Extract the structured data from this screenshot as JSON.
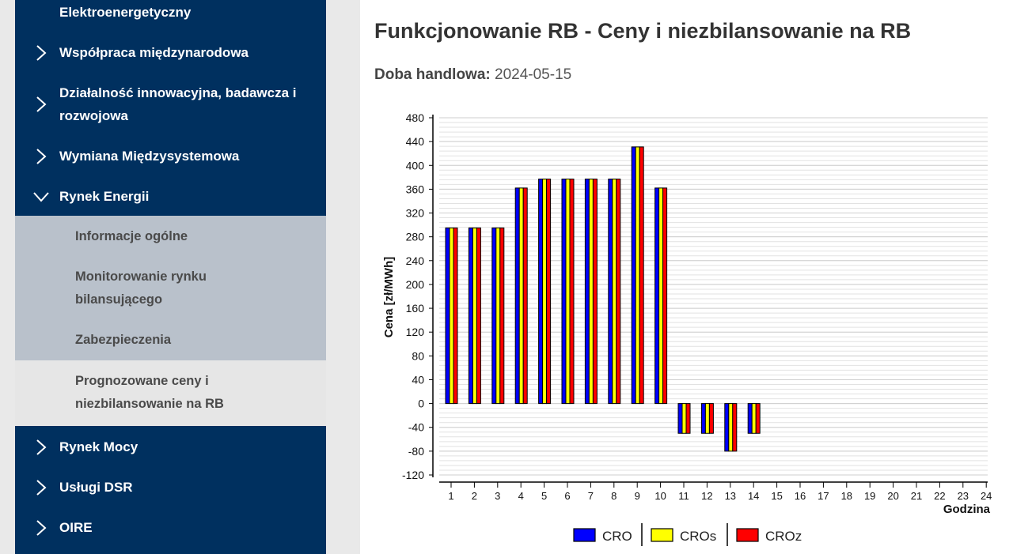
{
  "sidebar": {
    "items_top": [
      {
        "label": "Elektroenergetyczny",
        "chevron": "none"
      },
      {
        "label": "Współpraca międzynarodowa",
        "chevron": "right"
      },
      {
        "label": "Działalność innowacyjna, badawcza i rozwojowa",
        "chevron": "right"
      },
      {
        "label": "Wymiana Międzysystemowa",
        "chevron": "right"
      },
      {
        "label": "Rynek Energii",
        "chevron": "down"
      }
    ],
    "submenu": [
      {
        "label": "Informacje ogólne"
      },
      {
        "label": "Monitorowanie rynku bilansującego"
      },
      {
        "label": "Zabezpieczenia"
      }
    ],
    "submenu_active": {
      "label": "Prognozowane ceny i niezbilansowanie na RB"
    },
    "items_bottom": [
      {
        "label": "Rynek Mocy",
        "chevron": "right"
      },
      {
        "label": "Usługi DSR",
        "chevron": "right"
      },
      {
        "label": "OIRE",
        "chevron": "right"
      }
    ]
  },
  "main": {
    "title": "Funkcjonowanie RB - Ceny i niezbilansowanie na RB",
    "date_label": "Doba handlowa:",
    "date_value": "2024-05-15"
  },
  "chart_data": {
    "type": "bar",
    "title": "",
    "xlabel": "Godzina",
    "ylabel": "Cena [zł/MWh]",
    "ylim": [
      -120,
      480
    ],
    "yticks": [
      480,
      440,
      400,
      360,
      320,
      280,
      240,
      200,
      160,
      120,
      80,
      40,
      0,
      -40,
      -80,
      -120
    ],
    "categories": [
      "1",
      "2",
      "3",
      "4",
      "5",
      "6",
      "7",
      "8",
      "9",
      "10",
      "11",
      "12",
      "13",
      "14",
      "15",
      "16",
      "17",
      "18",
      "19",
      "20",
      "21",
      "22",
      "23",
      "24"
    ],
    "series": [
      {
        "name": "CRO",
        "color": "#0000ff",
        "values": [
          295,
          295,
          295,
          362,
          377,
          377,
          377,
          377,
          431,
          362,
          -50,
          -50,
          -80,
          -50,
          null,
          null,
          null,
          null,
          null,
          null,
          null,
          null,
          null,
          null
        ]
      },
      {
        "name": "CROs",
        "color": "#ffff00",
        "values": [
          295,
          295,
          295,
          362,
          377,
          377,
          377,
          377,
          431,
          362,
          -50,
          -50,
          -80,
          -50,
          null,
          null,
          null,
          null,
          null,
          null,
          null,
          null,
          null,
          null
        ]
      },
      {
        "name": "CROz",
        "color": "#ff0000",
        "values": [
          295,
          295,
          295,
          362,
          377,
          377,
          377,
          377,
          431,
          362,
          -50,
          -50,
          -80,
          -50,
          null,
          null,
          null,
          null,
          null,
          null,
          null,
          null,
          null,
          null
        ]
      }
    ],
    "grid": true,
    "legend_position": "bottom"
  }
}
